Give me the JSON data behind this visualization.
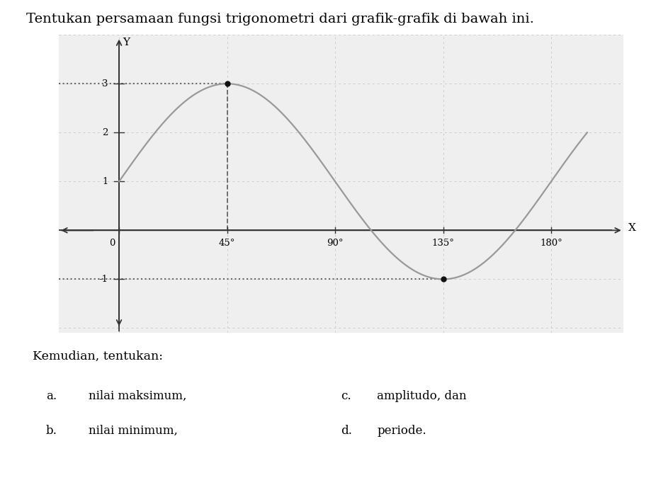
{
  "title": "Tentukan persamaan fungsi trigonometri dari grafik-grafik di bawah ini.",
  "title_fontsize": 14,
  "xlabel": "X",
  "ylabel": "Y",
  "x_ticks": [
    0,
    45,
    90,
    135,
    180
  ],
  "x_tick_labels": [
    "0",
    "45°",
    "90°",
    "135°",
    "180°"
  ],
  "y_ticks": [
    -1,
    1,
    2,
    3
  ],
  "y_tick_labels": [
    "-1",
    "1",
    "2",
    "3"
  ],
  "xlim": [
    -25,
    210
  ],
  "ylim": [
    -2.1,
    4.0
  ],
  "curve_color": "#999999",
  "curve_linewidth": 1.6,
  "dot_color": "#111111",
  "dot_size": 5,
  "dashed_color": "#666666",
  "grid_color": "#cccccc",
  "grid_linewidth": 0.7,
  "background_color": "#ffffff",
  "plot_bg_color": "#efefef",
  "amplitude": 2,
  "vertical_shift": 1,
  "max_point": [
    45,
    3
  ],
  "min_point": [
    135,
    -1
  ],
  "kemudian_text": "Kemudian, tentukan:",
  "items_left": [
    [
      "a.",
      "nilai maksimum,"
    ],
    [
      "b.",
      "nilai minimum,"
    ]
  ],
  "items_right": [
    [
      "c.",
      "amplitudo, dan"
    ],
    [
      "d.",
      "periode."
    ]
  ]
}
